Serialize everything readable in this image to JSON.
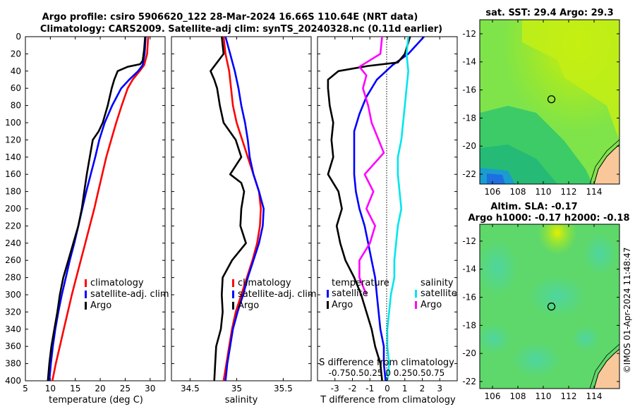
{
  "header": {
    "line1": "Argo profile: csiro 5906620_122 28-Mar-2024 16.66S 110.64E (NRT data)",
    "line2": "Climatology: CARS2009. Satellite-adj clim: synTS_20240328.nc (0.11d earlier)"
  },
  "colors": {
    "climatology": "#ff0000",
    "satellite_adj": "#0000ff",
    "argo": "#000000",
    "salinity_satellite": "#00e5ee",
    "salinity_argo": "#ff00ff",
    "land": "#f8c89a",
    "coast": "#000000"
  },
  "chart_data": [
    {
      "id": "temperature",
      "type": "line",
      "xlabel": "temperature (deg C)",
      "ylabel": "",
      "xlim": [
        5,
        33
      ],
      "ylim": [
        400,
        0
      ],
      "xticks": [
        5,
        10,
        15,
        20,
        25,
        30
      ],
      "yticks": [
        0,
        20,
        40,
        60,
        80,
        100,
        120,
        140,
        160,
        180,
        200,
        220,
        240,
        260,
        280,
        300,
        320,
        340,
        360,
        380,
        400
      ],
      "legend": [
        "climatology",
        "satellite-adj. clim",
        "Argo"
      ],
      "series": [
        {
          "name": "climatology",
          "color": "#ff0000",
          "points": [
            [
              29.6,
              0
            ],
            [
              29.4,
              20
            ],
            [
              28.8,
              33
            ],
            [
              27.9,
              40
            ],
            [
              26.5,
              50
            ],
            [
              25.5,
              60
            ],
            [
              24.3,
              80
            ],
            [
              23.2,
              100
            ],
            [
              22.2,
              120
            ],
            [
              21.2,
              140
            ],
            [
              20.4,
              160
            ],
            [
              19.6,
              180
            ],
            [
              18.8,
              200
            ],
            [
              17.9,
              220
            ],
            [
              17.0,
              240
            ],
            [
              16.1,
              260
            ],
            [
              15.2,
              280
            ],
            [
              14.3,
              300
            ],
            [
              13.5,
              320
            ],
            [
              12.7,
              340
            ],
            [
              11.9,
              360
            ],
            [
              11.1,
              380
            ],
            [
              10.4,
              400
            ]
          ]
        },
        {
          "name": "satellite-adj. clim",
          "color": "#0000ff",
          "points": [
            [
              29.1,
              0
            ],
            [
              28.9,
              20
            ],
            [
              28.5,
              33
            ],
            [
              27.6,
              40
            ],
            [
              25.8,
              50
            ],
            [
              24.2,
              60
            ],
            [
              22.4,
              80
            ],
            [
              20.9,
              100
            ],
            [
              19.8,
              120
            ],
            [
              19.0,
              140
            ],
            [
              18.1,
              160
            ],
            [
              17.2,
              180
            ],
            [
              16.4,
              200
            ],
            [
              15.6,
              220
            ],
            [
              14.8,
              240
            ],
            [
              13.9,
              260
            ],
            [
              13.1,
              280
            ],
            [
              12.3,
              300
            ],
            [
              11.6,
              320
            ],
            [
              11.0,
              340
            ],
            [
              10.5,
              360
            ],
            [
              10.1,
              380
            ],
            [
              9.8,
              400
            ]
          ]
        },
        {
          "name": "Argo",
          "color": "#000000",
          "points": [
            [
              29.0,
              0
            ],
            [
              28.8,
              15
            ],
            [
              28.5,
              28
            ],
            [
              28.0,
              32
            ],
            [
              25.5,
              35
            ],
            [
              23.5,
              40
            ],
            [
              22.8,
              50
            ],
            [
              22.3,
              60
            ],
            [
              21.5,
              80
            ],
            [
              20.5,
              100
            ],
            [
              19.7,
              110
            ],
            [
              18.5,
              120
            ],
            [
              17.9,
              140
            ],
            [
              17.3,
              160
            ],
            [
              16.8,
              180
            ],
            [
              16.3,
              200
            ],
            [
              15.6,
              220
            ],
            [
              14.6,
              240
            ],
            [
              13.6,
              260
            ],
            [
              12.6,
              280
            ],
            [
              11.9,
              300
            ],
            [
              11.4,
              320
            ],
            [
              10.8,
              340
            ],
            [
              10.2,
              360
            ],
            [
              9.8,
              380
            ],
            [
              9.5,
              400
            ]
          ]
        }
      ]
    },
    {
      "id": "salinity",
      "type": "line",
      "xlabel": "salinity",
      "xlim": [
        34.3,
        35.8
      ],
      "ylim": [
        400,
        0
      ],
      "xticks": [
        34.5,
        35,
        35.5
      ],
      "legend": [
        "climatology",
        "satellite-adj. clim",
        "Argo"
      ],
      "series": [
        {
          "name": "climatology",
          "color": "#ff0000",
          "points": [
            [
              34.86,
              0
            ],
            [
              34.88,
              20
            ],
            [
              34.92,
              40
            ],
            [
              34.94,
              60
            ],
            [
              34.96,
              80
            ],
            [
              35.0,
              100
            ],
            [
              35.06,
              120
            ],
            [
              35.12,
              140
            ],
            [
              35.18,
              160
            ],
            [
              35.24,
              180
            ],
            [
              35.26,
              200
            ],
            [
              35.25,
              220
            ],
            [
              35.22,
              240
            ],
            [
              35.17,
              260
            ],
            [
              35.11,
              280
            ],
            [
              35.05,
              300
            ],
            [
              34.99,
              320
            ],
            [
              34.95,
              340
            ],
            [
              34.92,
              360
            ],
            [
              34.89,
              380
            ],
            [
              34.86,
              400
            ]
          ]
        },
        {
          "name": "satellite-adj. clim",
          "color": "#0000ff",
          "points": [
            [
              34.88,
              0
            ],
            [
              34.93,
              20
            ],
            [
              34.98,
              40
            ],
            [
              35.02,
              60
            ],
            [
              35.05,
              80
            ],
            [
              35.09,
              100
            ],
            [
              35.12,
              120
            ],
            [
              35.14,
              140
            ],
            [
              35.18,
              160
            ],
            [
              35.24,
              180
            ],
            [
              35.29,
              200
            ],
            [
              35.28,
              220
            ],
            [
              35.24,
              240
            ],
            [
              35.18,
              260
            ],
            [
              35.12,
              280
            ],
            [
              35.07,
              300
            ],
            [
              35.01,
              320
            ],
            [
              34.96,
              340
            ],
            [
              34.93,
              360
            ],
            [
              34.9,
              380
            ],
            [
              34.88,
              400
            ]
          ]
        },
        {
          "name": "Argo",
          "color": "#000000",
          "points": [
            [
              34.84,
              0
            ],
            [
              34.86,
              20
            ],
            [
              34.72,
              40
            ],
            [
              34.76,
              50
            ],
            [
              34.79,
              60
            ],
            [
              34.82,
              80
            ],
            [
              34.86,
              100
            ],
            [
              34.99,
              120
            ],
            [
              35.05,
              140
            ],
            [
              34.93,
              160
            ],
            [
              35.05,
              170
            ],
            [
              35.08,
              180
            ],
            [
              35.05,
              200
            ],
            [
              35.04,
              220
            ],
            [
              35.1,
              240
            ],
            [
              34.95,
              260
            ],
            [
              34.85,
              280
            ],
            [
              34.84,
              300
            ],
            [
              34.85,
              320
            ],
            [
              34.83,
              340
            ],
            [
              34.78,
              360
            ],
            [
              34.77,
              380
            ],
            [
              34.76,
              400
            ]
          ]
        }
      ]
    },
    {
      "id": "differences",
      "type": "line",
      "xlabel": "T difference from climatology",
      "xlabel_top": "S difference from climatology",
      "xlim": [
        -4,
        4
      ],
      "ylim": [
        400,
        0
      ],
      "xticks": [
        -3,
        -2,
        -1,
        0,
        1,
        2,
        3
      ],
      "top_xticks": [
        "-0.75",
        "0.5",
        "0.25",
        "0",
        "0.25",
        "0.5",
        "0.75"
      ],
      "legend_title_left": "temperature",
      "legend_title_right": "salinity",
      "legend_left": [
        "satellite",
        "Argo"
      ],
      "legend_right": [
        "satellite",
        "Argo"
      ],
      "series": [
        {
          "name": "temperature satellite",
          "color": "#0000ff",
          "points": [
            [
              2.1,
              0
            ],
            [
              1.2,
              20
            ],
            [
              0.3,
              33
            ],
            [
              -0.6,
              50
            ],
            [
              -1.2,
              70
            ],
            [
              -1.6,
              90
            ],
            [
              -1.9,
              110
            ],
            [
              -1.9,
              130
            ],
            [
              -1.9,
              160
            ],
            [
              -1.8,
              180
            ],
            [
              -1.6,
              200
            ],
            [
              -1.3,
              220
            ],
            [
              -1.1,
              240
            ],
            [
              -0.9,
              260
            ],
            [
              -0.7,
              280
            ],
            [
              -0.6,
              300
            ],
            [
              -0.5,
              320
            ],
            [
              -0.4,
              340
            ],
            [
              -0.2,
              360
            ],
            [
              -0.2,
              380
            ],
            [
              -0.1,
              400
            ]
          ]
        },
        {
          "name": "temperature Argo",
          "color": "#000000",
          "points": [
            [
              1.3,
              0
            ],
            [
              1.0,
              20
            ],
            [
              0.6,
              30
            ],
            [
              -1.1,
              34
            ],
            [
              -2.8,
              40
            ],
            [
              -3.4,
              50
            ],
            [
              -3.4,
              60
            ],
            [
              -3.3,
              80
            ],
            [
              -3.1,
              100
            ],
            [
              -3.2,
              120
            ],
            [
              -3.1,
              140
            ],
            [
              -3.4,
              160
            ],
            [
              -2.8,
              180
            ],
            [
              -2.6,
              200
            ],
            [
              -2.9,
              220
            ],
            [
              -2.7,
              240
            ],
            [
              -2.4,
              260
            ],
            [
              -1.9,
              280
            ],
            [
              -1.5,
              300
            ],
            [
              -1.2,
              320
            ],
            [
              -0.9,
              340
            ],
            [
              -0.7,
              360
            ],
            [
              -0.4,
              380
            ],
            [
              -0.3,
              400
            ]
          ]
        },
        {
          "name": "salinity satellite",
          "color": "#00e5ee",
          "points": [
            [
              1.2,
              0
            ],
            [
              1.1,
              20
            ],
            [
              1.2,
              40
            ],
            [
              1.1,
              60
            ],
            [
              1.0,
              80
            ],
            [
              0.9,
              100
            ],
            [
              0.8,
              120
            ],
            [
              0.6,
              140
            ],
            [
              0.6,
              160
            ],
            [
              0.7,
              180
            ],
            [
              0.8,
              200
            ],
            [
              0.6,
              220
            ],
            [
              0.5,
              240
            ],
            [
              0.4,
              260
            ],
            [
              0.4,
              280
            ],
            [
              0.2,
              300
            ],
            [
              0.1,
              320
            ],
            [
              0.0,
              340
            ],
            [
              0.0,
              360
            ],
            [
              0.1,
              380
            ],
            [
              0.0,
              400
            ]
          ]
        },
        {
          "name": "salinity Argo",
          "color": "#ff00ff",
          "points": [
            [
              -0.3,
              0
            ],
            [
              -0.4,
              20
            ],
            [
              -1.6,
              35
            ],
            [
              -1.2,
              45
            ],
            [
              -1.4,
              60
            ],
            [
              -1.1,
              80
            ],
            [
              -0.9,
              100
            ],
            [
              -0.5,
              120
            ],
            [
              -0.2,
              135
            ],
            [
              -1.3,
              160
            ],
            [
              -0.8,
              180
            ],
            [
              -1.2,
              200
            ],
            [
              -0.7,
              220
            ],
            [
              -1.0,
              240
            ],
            [
              -1.6,
              260
            ],
            [
              -1.6,
              280
            ],
            [
              -1.2,
              300
            ]
          ]
        }
      ]
    },
    {
      "id": "sst_map",
      "type": "heatmap",
      "title": "sat. SST: 29.4 Argo: 29.3",
      "xlim": [
        105,
        116
      ],
      "ylim": [
        -22.7,
        -11
      ],
      "xticks": [
        106,
        108,
        110,
        112,
        114
      ],
      "yticks": [
        -12,
        -14,
        -16,
        -18,
        -20,
        -22
      ],
      "marker": {
        "lon": 110.64,
        "lat": -16.66
      }
    },
    {
      "id": "sla_map",
      "type": "heatmap",
      "title_line1": "Altim. SLA: -0.17",
      "title_line2": "Argo h1000: -0.17 h2000: -0.18",
      "xlim": [
        105,
        116
      ],
      "ylim": [
        -22.5,
        -10.8
      ],
      "xticks": [
        106,
        108,
        110,
        112,
        114
      ],
      "yticks": [
        -12,
        -14,
        -16,
        -18,
        -20,
        -22
      ],
      "marker": {
        "lon": 110.64,
        "lat": -16.66
      }
    }
  ],
  "watermark": "©IMOS 01-Apr-2024 11:48:47"
}
